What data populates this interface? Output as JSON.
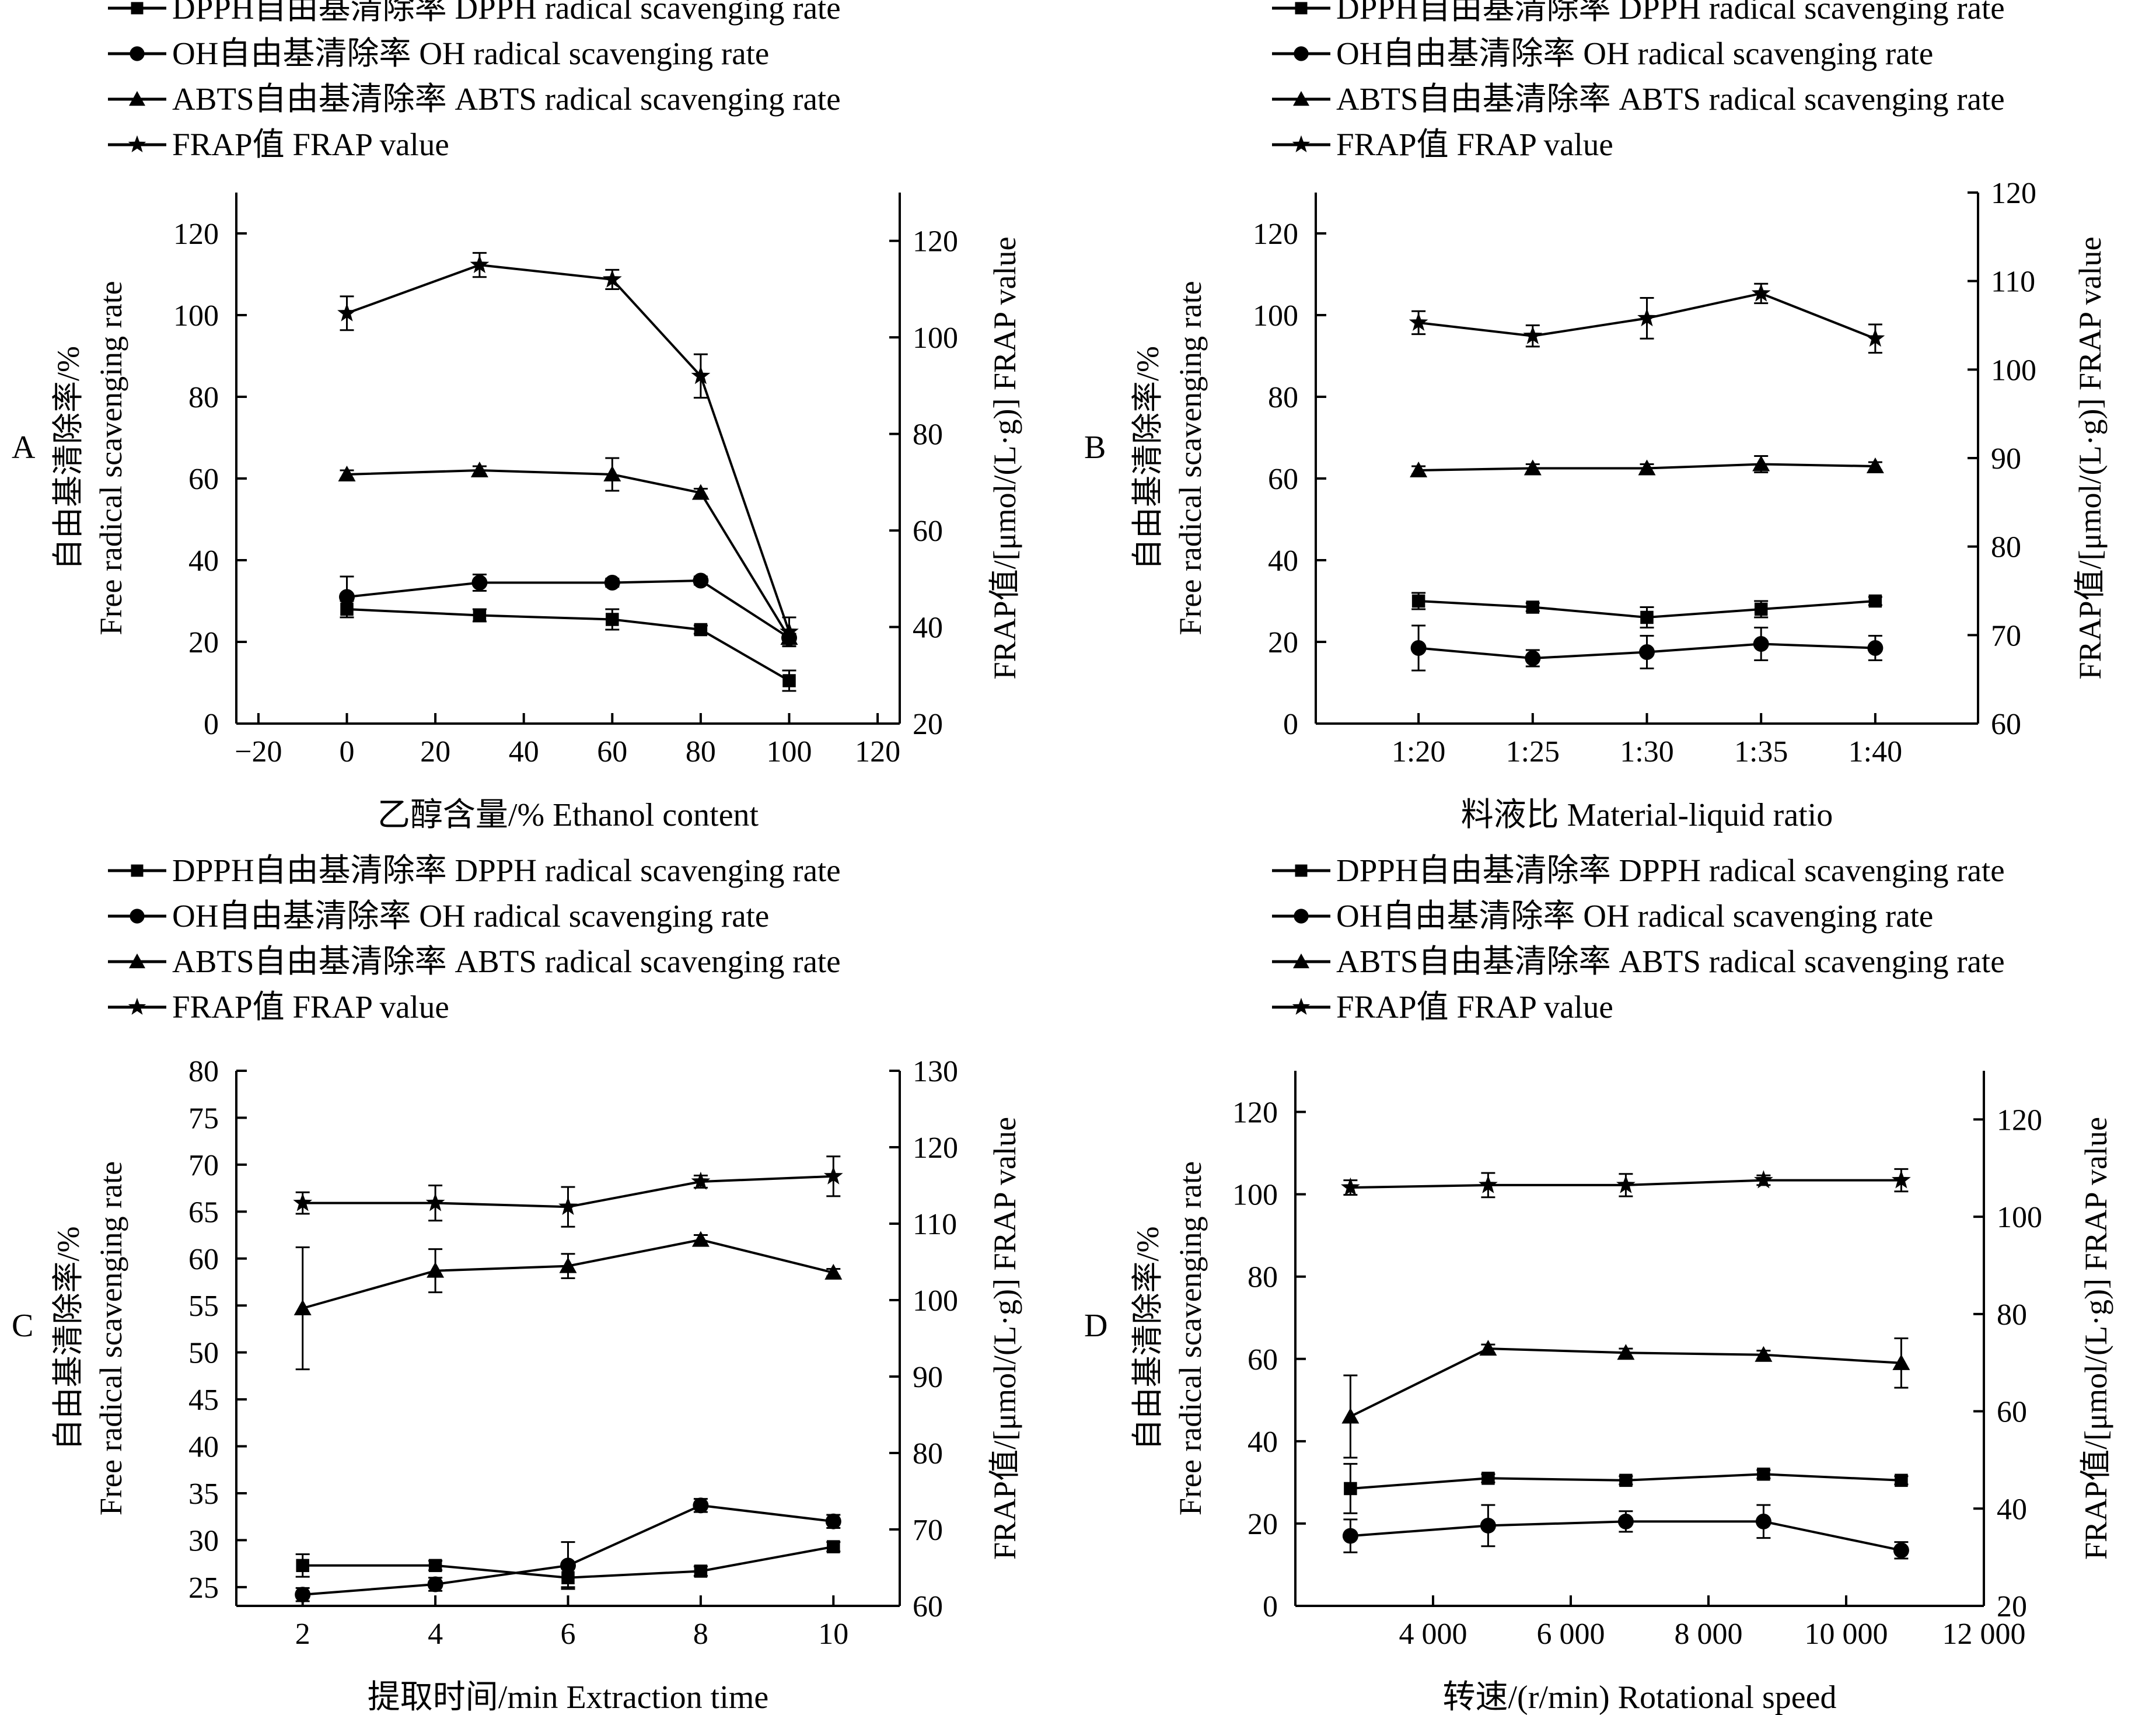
{
  "legend_labels": [
    "DPPH自由基清除率  DPPH radical scavenging rate",
    "OH自由基清除率  OH radical scavenging rate",
    "ABTS自由基清除率  ABTS radical scavenging rate",
    "FRAP值  FRAP value"
  ],
  "left_ylabel_cn": "自由基清除率/%",
  "left_ylabel_en": "Free radical scavenging rate",
  "right_ylabel": "FRAP值/[μmol/(L·g)]  FRAP value",
  "series_names": [
    "DPPH",
    "OH",
    "ABTS",
    "FRAP"
  ],
  "series_markers": [
    "square",
    "circle",
    "triangle",
    "star"
  ],
  "color": "#000000",
  "chart_data": [
    {
      "type": "line",
      "panel": "A",
      "xlabel": "乙醇含量/%  Ethanol content",
      "x": [
        0,
        30,
        60,
        80,
        100
      ],
      "xlim": [
        -25,
        125
      ],
      "xticks": [
        -20,
        0,
        20,
        40,
        60,
        80,
        100,
        120
      ],
      "xtick_labels": [
        "−20",
        "0",
        "20",
        "40",
        "60",
        "80",
        "100",
        "120"
      ],
      "ylim": [
        0,
        130
      ],
      "yticks": [
        0,
        20,
        40,
        60,
        80,
        100,
        120
      ],
      "y2lim": [
        20,
        130
      ],
      "y2ticks": [
        20,
        40,
        60,
        80,
        100,
        120
      ],
      "series": [
        {
          "name": "DPPH",
          "axis": "left",
          "values": [
            28,
            26.5,
            25.5,
            23,
            10.5
          ],
          "errors": [
            2,
            1.5,
            2.5,
            1,
            2.5
          ]
        },
        {
          "name": "OH",
          "axis": "left",
          "values": [
            31,
            34.5,
            34.5,
            35,
            21
          ],
          "errors": [
            5,
            2,
            1,
            1,
            2
          ]
        },
        {
          "name": "ABTS",
          "axis": "left",
          "values": [
            61,
            62,
            61,
            56.5,
            21
          ],
          "errors": [
            1,
            1,
            4,
            1,
            1
          ]
        },
        {
          "name": "FRAP",
          "axis": "right",
          "values": [
            105,
            115,
            112,
            92,
            39
          ],
          "errors": [
            3.5,
            2.5,
            2,
            4.5,
            3
          ]
        }
      ]
    },
    {
      "type": "line",
      "panel": "B",
      "xlabel": "料液比  Material-liquid ratio",
      "x": [
        0,
        1,
        2,
        3,
        4
      ],
      "xlim": [
        -0.9,
        4.9
      ],
      "xticks": [
        0,
        1,
        2,
        3,
        4
      ],
      "xtick_labels": [
        "1:20",
        "1:25",
        "1:30",
        "1:35",
        "1:40"
      ],
      "ylim": [
        0,
        130
      ],
      "yticks": [
        0,
        20,
        40,
        60,
        80,
        100,
        120
      ],
      "y2lim": [
        60,
        120
      ],
      "y2ticks": [
        60,
        70,
        80,
        90,
        100,
        110,
        120
      ],
      "series": [
        {
          "name": "DPPH",
          "axis": "left",
          "values": [
            30,
            28.5,
            26,
            28,
            30
          ],
          "errors": [
            2,
            1,
            2.5,
            2,
            1
          ]
        },
        {
          "name": "OH",
          "axis": "left",
          "values": [
            18.5,
            16,
            17.5,
            19.5,
            18.5
          ],
          "errors": [
            5.5,
            2,
            4,
            4,
            3
          ]
        },
        {
          "name": "ABTS",
          "axis": "left",
          "values": [
            62,
            62.5,
            62.5,
            63.5,
            63
          ],
          "errors": [
            1,
            1,
            1,
            2,
            1
          ]
        },
        {
          "name": "FRAP",
          "axis": "right",
          "values": [
            105.3,
            103.8,
            105.8,
            108.6,
            103.5
          ],
          "errors": [
            1.3,
            1.2,
            2.3,
            1.1,
            1.6
          ]
        }
      ]
    },
    {
      "type": "line",
      "panel": "C",
      "xlabel": "提取时间/min  Extraction time",
      "x": [
        2,
        4,
        6,
        8,
        10
      ],
      "xlim": [
        1,
        11
      ],
      "xticks": [
        2,
        4,
        6,
        8,
        10
      ],
      "xtick_labels": [
        "2",
        "4",
        "6",
        "8",
        "10"
      ],
      "ylim": [
        23,
        80
      ],
      "yticks": [
        25,
        30,
        35,
        40,
        45,
        50,
        55,
        60,
        65,
        70,
        75,
        80
      ],
      "y2lim": [
        60,
        130
      ],
      "y2ticks": [
        60,
        70,
        80,
        90,
        100,
        110,
        120,
        130
      ],
      "series": [
        {
          "name": "DPPH",
          "axis": "left",
          "values": [
            27.3,
            27.3,
            26,
            26.7,
            29.3
          ],
          "errors": [
            1.2,
            0.5,
            1,
            0.5,
            0.5
          ]
        },
        {
          "name": "OH",
          "axis": "left",
          "values": [
            24.2,
            25.3,
            27.3,
            33.7,
            32
          ],
          "errors": [
            0.7,
            0.7,
            2.5,
            0.7,
            0.7
          ]
        },
        {
          "name": "ABTS",
          "axis": "left",
          "values": [
            54.7,
            58.7,
            59.2,
            62,
            58.5
          ],
          "errors": [
            6.5,
            2.3,
            1.3,
            0.5,
            0.4
          ]
        },
        {
          "name": "FRAP",
          "axis": "right",
          "values": [
            112.7,
            112.7,
            112.2,
            115.5,
            116.2
          ],
          "errors": [
            1.4,
            2.3,
            2.6,
            0.8,
            2.6
          ]
        }
      ]
    },
    {
      "type": "line",
      "panel": "D",
      "xlabel": "转速/(r/min)  Rotational speed",
      "x": [
        2800,
        4800,
        6800,
        8800,
        10800
      ],
      "xlim": [
        2000,
        12000
      ],
      "xticks": [
        4000,
        6000,
        8000,
        10000,
        12000
      ],
      "xtick_labels": [
        "4 000",
        "6 000",
        "8 000",
        "10 000",
        "12 000"
      ],
      "ylim": [
        0,
        130
      ],
      "yticks": [
        0,
        20,
        40,
        60,
        80,
        100,
        120
      ],
      "y2lim": [
        20,
        130
      ],
      "y2ticks": [
        20,
        40,
        60,
        80,
        100,
        120
      ],
      "series": [
        {
          "name": "DPPH",
          "axis": "left",
          "values": [
            28.5,
            31,
            30.5,
            32,
            30.5
          ],
          "errors": [
            6,
            1,
            1,
            1,
            1
          ]
        },
        {
          "name": "OH",
          "axis": "left",
          "values": [
            17,
            19.5,
            20.5,
            20.5,
            13.5
          ],
          "errors": [
            4,
            5,
            2.5,
            4,
            2
          ]
        },
        {
          "name": "ABTS",
          "axis": "left",
          "values": [
            46,
            62.5,
            61.5,
            61,
            59
          ],
          "errors": [
            10,
            1,
            1,
            1,
            6
          ]
        },
        {
          "name": "FRAP",
          "axis": "right",
          "values": [
            106,
            106.5,
            106.5,
            107.5,
            107.5
          ],
          "errors": [
            1.5,
            2.5,
            2.3,
            1,
            2.3
          ]
        }
      ]
    }
  ]
}
